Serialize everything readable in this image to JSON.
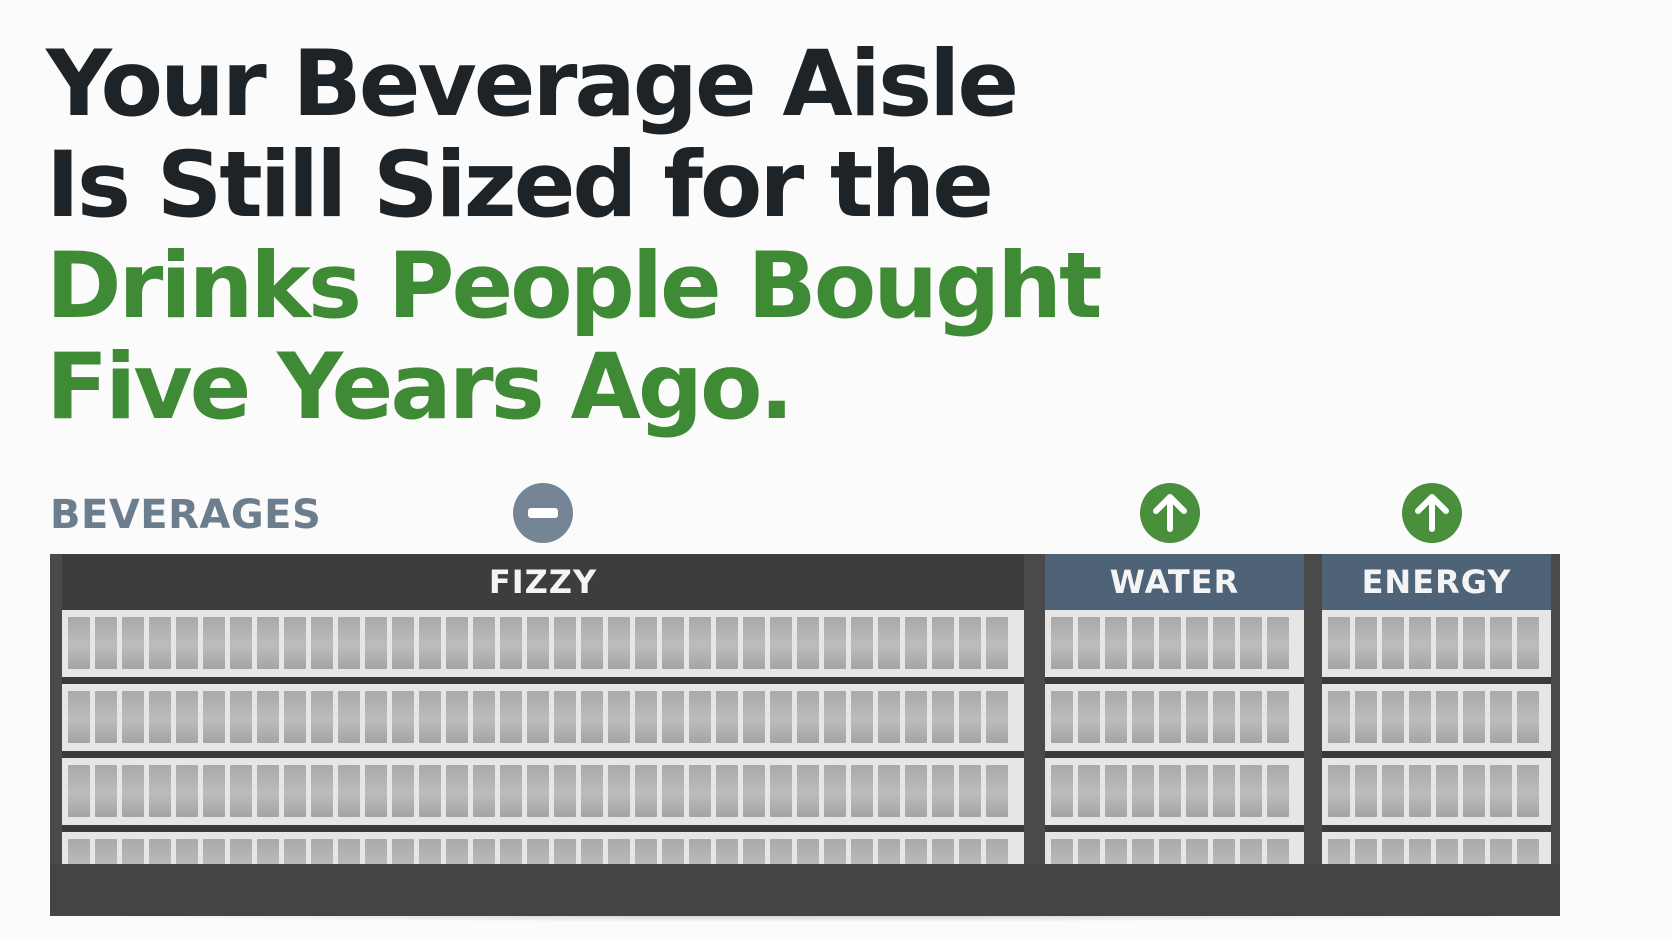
{
  "headline": {
    "line1": "Your Beverage Aisle",
    "line2": "Is Still Sized for the",
    "line3": "Drinks People Bought",
    "line4": "Five Years Ago."
  },
  "aisle": {
    "label": "BEVERAGES",
    "sections": [
      {
        "name": "FIZZY",
        "trend": "minus",
        "trend_icon": "minus-icon",
        "sign_color": "#3d3d3d"
      },
      {
        "name": "WATER",
        "trend": "up",
        "trend_icon": "arrow-up-icon",
        "sign_color": "#4e6377"
      },
      {
        "name": "ENERGY",
        "trend": "up",
        "trend_icon": "arrow-up-icon",
        "sign_color": "#4e6377"
      }
    ]
  },
  "colors": {
    "headline_dark": "#1d2327",
    "headline_accent": "#3f8b35",
    "label_gray": "#6c7d8d",
    "minus_badge": "#758596",
    "up_badge": "#4a8f3c"
  }
}
